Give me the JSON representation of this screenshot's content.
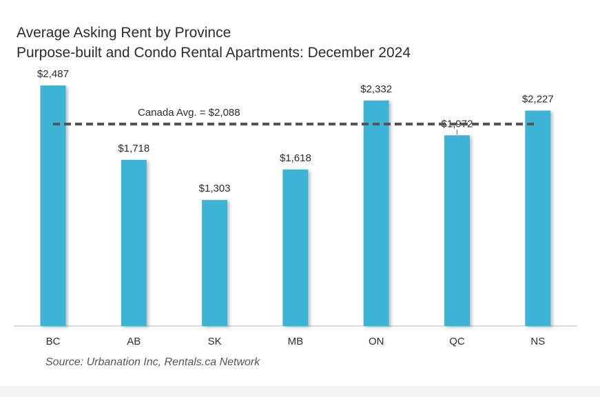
{
  "chart_data": {
    "type": "bar",
    "title": "Average Asking Rent by Province",
    "subtitle": "Purpose-built and Condo Rental Apartments: December 2024",
    "categories": [
      "BC",
      "AB",
      "SK",
      "MB",
      "ON",
      "QC",
      "NS"
    ],
    "values": [
      2487,
      1718,
      1303,
      1618,
      2332,
      1972,
      2227
    ],
    "value_labels": [
      "$2,487",
      "$1,718",
      "$1,303",
      "$1,618",
      "$2,332",
      "$1,972",
      "$2,227"
    ],
    "reference_line": {
      "value": 2088,
      "label": "Canada Avg. = $2,088",
      "style": "dashed"
    },
    "ylim": [
      0,
      2487
    ],
    "grid": false,
    "legend": "none",
    "source": "Source: Urbanation Inc, Rentals.ca Network",
    "colors": {
      "bar": "#3db4d6",
      "reference_line": "#555555",
      "text": "#2b2b2b",
      "axis": "#cfcfcf"
    }
  }
}
